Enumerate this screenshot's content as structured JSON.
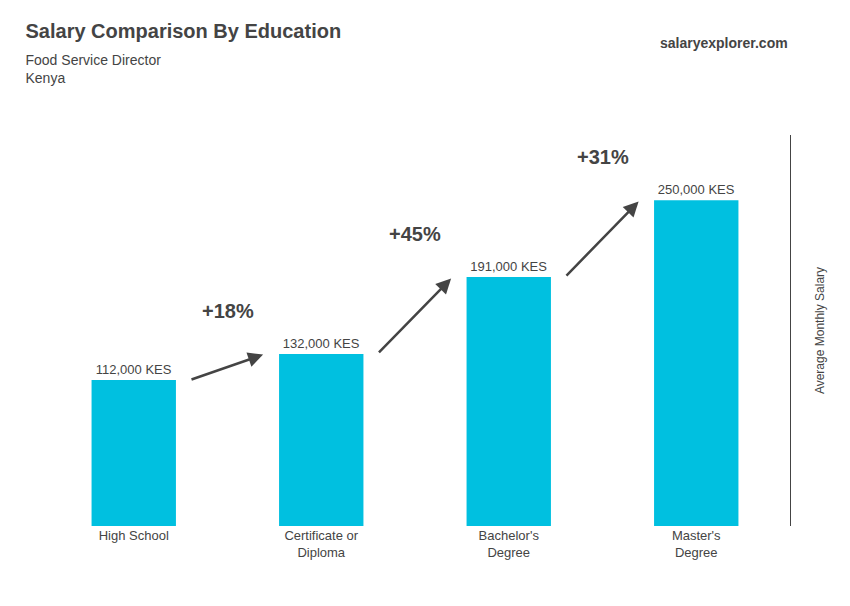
{
  "chart_data": {
    "type": "bar",
    "title": "Salary Comparison By Education",
    "subtitle": [
      "Food Service Director",
      "Kenya"
    ],
    "ylabel": "Average Monthly Salary",
    "categories": [
      "High School",
      "Certificate or\nDiploma",
      "Bachelor's\nDegree",
      "Master's\nDegree"
    ],
    "values": [
      112000,
      132000,
      191000,
      250000
    ],
    "value_labels": [
      "112,000 KES",
      "132,000 KES",
      "191,000 KES",
      "250,000 KES"
    ],
    "data_labels": true,
    "color": "#00c0e0",
    "ylim": [
      0,
      300000
    ],
    "tick_labels": "x",
    "grid": false,
    "annotations": [
      {
        "text": "+18%",
        "from": "High School",
        "to": "Certificate or\nDiploma"
      },
      {
        "text": "+45%",
        "from": "Certificate or\nDiploma",
        "to": "Bachelor's\nDegree"
      },
      {
        "text": "+31%",
        "from": "Bachelor's\nDegree",
        "to": "Master's\nDegree"
      },
      {
        "text": "salaryexplorer.com"
      }
    ]
  }
}
